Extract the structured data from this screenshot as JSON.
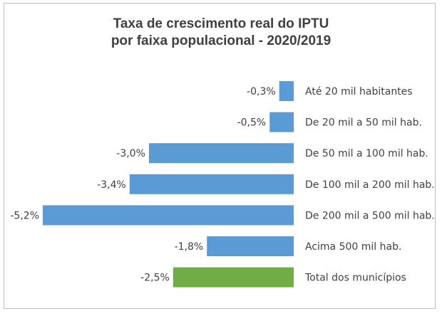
{
  "chart_data": {
    "type": "bar",
    "orientation": "horizontal",
    "title_line1": "Taxa de crescimento real do IPTU",
    "title_line2": "por faixa populacional - 2020/2019",
    "categories": [
      "Até 20 mil habitantes",
      "De 20 mil a 50 mil hab.",
      "De 50 mil a 100 mil hab.",
      "De 100 mil a 200 mil hab.",
      "De 200 mil a 500 mil hab.",
      "Acima 500 mil hab.",
      "Total dos municípios"
    ],
    "values": [
      -0.3,
      -0.5,
      -3.0,
      -3.4,
      -5.2,
      -1.8,
      -2.5
    ],
    "data_labels": [
      "-0,3%",
      "-0,5%",
      "-3,0%",
      "-3,4%",
      "-5,2%",
      "-1,8%",
      "-2,5%"
    ],
    "colors": [
      "#5b9bd5",
      "#5b9bd5",
      "#5b9bd5",
      "#5b9bd5",
      "#5b9bd5",
      "#5b9bd5",
      "#70ad47"
    ],
    "xlim": [
      -5.2,
      0
    ],
    "grid": false,
    "legend": "none"
  }
}
